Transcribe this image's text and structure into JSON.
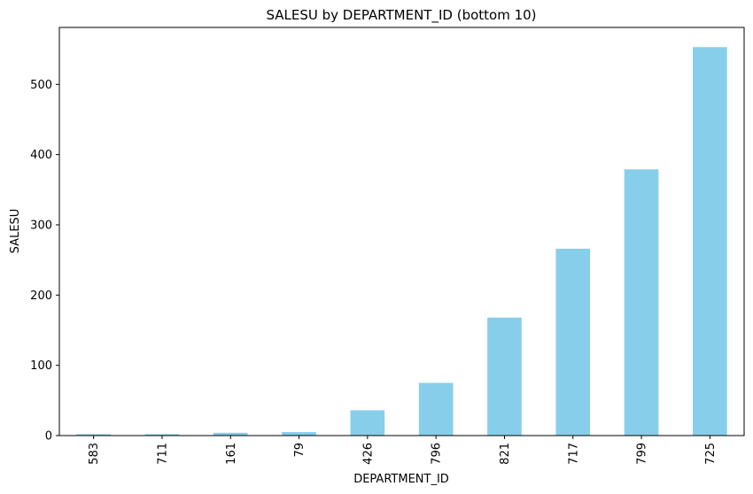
{
  "chart_data": {
    "type": "bar",
    "title": "SALESU by DEPARTMENT_ID (bottom 10)",
    "xlabel": "DEPARTMENT_ID",
    "ylabel": "SALESU",
    "categories": [
      "583",
      "711",
      "161",
      "79",
      "426",
      "796",
      "821",
      "717",
      "799",
      "725"
    ],
    "values": [
      2,
      2,
      4,
      5,
      36,
      75,
      168,
      266,
      379,
      553
    ],
    "ylim": [
      0,
      581
    ],
    "yticks": [
      0,
      100,
      200,
      300,
      400,
      500
    ],
    "bar_color": "#87ceeb",
    "grid": false
  }
}
